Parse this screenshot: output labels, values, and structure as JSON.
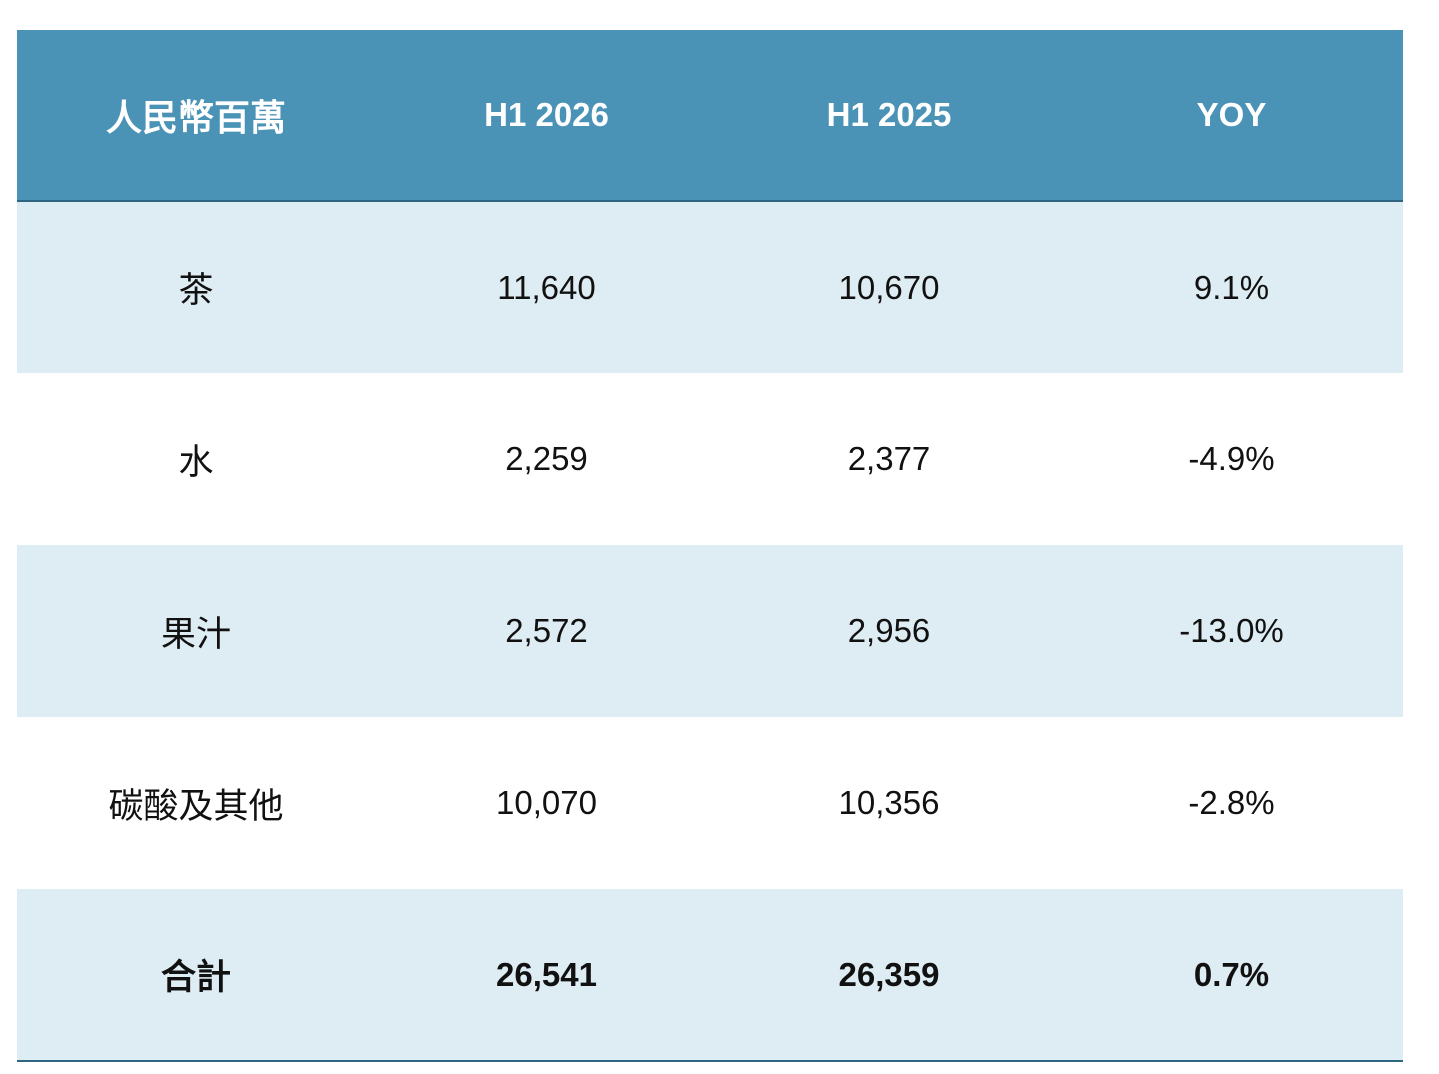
{
  "table": {
    "headers": [
      "人民幣百萬",
      "H1 2026",
      "H1 2025",
      "YOY"
    ],
    "rows": [
      {
        "label": "茶",
        "h1_2026": "11,640",
        "h1_2025": "10,670",
        "yoy": "9.1%"
      },
      {
        "label": "水",
        "h1_2026": "2,259",
        "h1_2025": "2,377",
        "yoy": "-4.9%"
      },
      {
        "label": "果汁",
        "h1_2026": "2,572",
        "h1_2025": "2,956",
        "yoy": "-13.0%"
      },
      {
        "label": "碳酸及其他",
        "h1_2026": "10,070",
        "h1_2025": "10,356",
        "yoy": "-2.8%"
      }
    ],
    "total": {
      "label": "合計",
      "h1_2026": "26,541",
      "h1_2025": "26,359",
      "yoy": "0.7%"
    }
  },
  "colors": {
    "header_bg": "#4a93b6",
    "shaded_row_bg": "#deecf3",
    "rule": "#2f6682"
  }
}
